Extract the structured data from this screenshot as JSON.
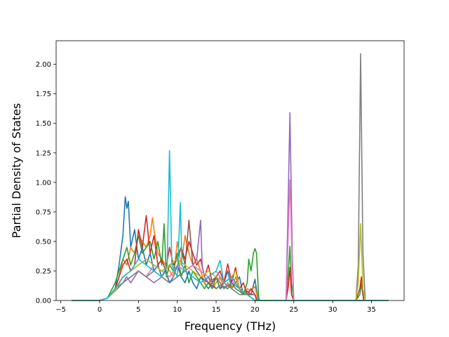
{
  "chart_data": {
    "type": "line",
    "xlabel": "Frequency (THz)",
    "ylabel": "Partial Density of States",
    "xlim": [
      -5.6,
      39.2
    ],
    "ylim": [
      0,
      2.2
    ],
    "xticks": [
      -5,
      0,
      5,
      10,
      15,
      20,
      25,
      30,
      35
    ],
    "yticks": [
      0.0,
      0.25,
      0.5,
      0.75,
      1.0,
      1.25,
      1.5,
      1.75,
      2.0
    ],
    "ytick_format": 2,
    "grid": false,
    "legend": "none",
    "series": [
      {
        "color": "#1f77b4",
        "x": [
          -3.6,
          0,
          1,
          1.5,
          2,
          2.5,
          3,
          3.3,
          3.5,
          3.7,
          4,
          4.5,
          5,
          5.5,
          6,
          6.5,
          7,
          7.5,
          8,
          8.5,
          9,
          9.5,
          10,
          10.5,
          11,
          11.5,
          12,
          12.5,
          13,
          13.5,
          14,
          14.5,
          15,
          15.5,
          16,
          16.5,
          17,
          17.5,
          18,
          18.5,
          19,
          19.5,
          20,
          20.3,
          20.6,
          24,
          37.2
        ],
        "y": [
          0,
          0,
          0.02,
          0.05,
          0.1,
          0.3,
          0.55,
          0.88,
          0.78,
          0.84,
          0.45,
          0.6,
          0.35,
          0.45,
          0.3,
          0.4,
          0.25,
          0.3,
          0.2,
          0.25,
          0.15,
          0.2,
          0.3,
          0.2,
          0.15,
          0.25,
          0.15,
          0.1,
          0.2,
          0.15,
          0.1,
          0.15,
          0.2,
          0.1,
          0.15,
          0.25,
          0.1,
          0.15,
          0.2,
          0.05,
          0.08,
          0.05,
          0.18,
          0.05,
          0,
          0,
          0
        ]
      },
      {
        "color": "#ff7f0e",
        "x": [
          -3.6,
          0,
          1,
          2,
          2.5,
          3,
          3.5,
          4,
          4.5,
          5,
          5.5,
          6,
          6.5,
          6.8,
          7,
          7.5,
          8,
          8.5,
          9,
          9.5,
          10,
          10.5,
          11,
          11.5,
          12,
          12.5,
          13,
          13.5,
          14,
          14.5,
          15,
          15.5,
          16,
          16.5,
          17,
          17.5,
          18,
          18.5,
          19,
          19.5,
          20,
          20.4,
          37.2
        ],
        "y": [
          0,
          0,
          0.02,
          0.1,
          0.2,
          0.35,
          0.3,
          0.45,
          0.4,
          0.55,
          0.5,
          0.45,
          0.55,
          0.7,
          0.6,
          0.4,
          0.35,
          0.3,
          0.25,
          0.2,
          0.5,
          0.3,
          0.55,
          0.4,
          0.3,
          0.35,
          0.25,
          0.15,
          0.2,
          0.1,
          0.15,
          0.2,
          0.1,
          0.15,
          0.1,
          0.2,
          0.1,
          0.05,
          0.1,
          0.08,
          0.12,
          0,
          0
        ]
      },
      {
        "color": "#2ca02c",
        "x": [
          -3.6,
          0,
          1,
          2,
          2.5,
          3,
          3.5,
          4,
          4.5,
          5,
          5.5,
          6,
          6.5,
          7,
          7.5,
          8,
          8.3,
          8.6,
          9,
          9.5,
          10,
          10.5,
          11,
          11.5,
          12,
          12.5,
          13,
          13.5,
          14,
          14.5,
          15,
          15.5,
          16,
          16.5,
          17,
          17.5,
          18,
          18.5,
          19,
          19.2,
          19.5,
          19.8,
          20,
          20.2,
          20.5,
          24,
          24.3,
          24.5,
          24.7,
          25,
          33,
          33.5,
          33.7,
          34,
          37.2
        ],
        "y": [
          0,
          0,
          0.02,
          0.15,
          0.25,
          0.35,
          0.45,
          0.3,
          0.4,
          0.55,
          0.4,
          0.45,
          0.5,
          0.35,
          0.5,
          0.3,
          0.65,
          0.2,
          0.3,
          0.25,
          0.4,
          0.2,
          0.3,
          0.15,
          0.25,
          0.2,
          0.15,
          0.1,
          0.15,
          0.1,
          0.2,
          0.1,
          0.12,
          0.1,
          0.15,
          0.1,
          0.08,
          0.05,
          0.15,
          0.35,
          0.25,
          0.4,
          0.44,
          0.4,
          0,
          0,
          0.25,
          0.46,
          0.15,
          0,
          0,
          0.05,
          0.14,
          0,
          0
        ]
      },
      {
        "color": "#d62728",
        "x": [
          -3.6,
          0,
          1,
          2,
          2.5,
          3,
          3.5,
          4,
          4.5,
          5,
          5.5,
          6,
          6.5,
          7,
          7.5,
          8,
          8.5,
          9,
          9.5,
          10,
          10.5,
          11,
          11.5,
          12,
          12.5,
          13,
          13.5,
          14,
          14.5,
          15,
          15.5,
          16,
          16.5,
          17,
          17.5,
          18,
          18.5,
          19,
          19.5,
          20,
          20.3,
          24,
          24.3,
          24.5,
          24.7,
          25,
          33,
          33.5,
          33.7,
          34,
          37.2
        ],
        "y": [
          0,
          0,
          0.02,
          0.1,
          0.2,
          0.3,
          0.35,
          0.25,
          0.3,
          0.6,
          0.45,
          0.72,
          0.4,
          0.55,
          0.3,
          0.35,
          0.25,
          0.45,
          0.3,
          0.35,
          0.45,
          0.35,
          0.5,
          0.4,
          0.3,
          0.35,
          0.2,
          0.3,
          0.15,
          0.2,
          0.25,
          0.15,
          0.31,
          0.15,
          0.28,
          0.1,
          0.15,
          0.05,
          0.1,
          0.05,
          0,
          0,
          0.12,
          0.28,
          0.05,
          0,
          0,
          0.1,
          0.2,
          0,
          0
        ]
      },
      {
        "color": "#9467bd",
        "x": [
          -3.6,
          0,
          1,
          2,
          3,
          3.5,
          4,
          5,
          6,
          7,
          8,
          9,
          10,
          11,
          12,
          12.5,
          13,
          13.2,
          13.5,
          14,
          15,
          16,
          17,
          18,
          19,
          20,
          20.3,
          24,
          24.2,
          24.5,
          24.8,
          25,
          37.2
        ],
        "y": [
          0,
          0,
          0.02,
          0.1,
          0.15,
          0.2,
          0.15,
          0.25,
          0.2,
          0.15,
          0.2,
          0.15,
          0.2,
          0.25,
          0.3,
          0.35,
          0.68,
          0.3,
          0.2,
          0.15,
          0.2,
          0.1,
          0.15,
          0.1,
          0.05,
          0.05,
          0,
          0,
          0.6,
          1.59,
          0.4,
          0,
          0
        ]
      },
      {
        "color": "#8c564b",
        "x": [
          -3.6,
          0,
          1,
          2,
          3,
          4,
          5,
          6,
          7,
          8,
          9,
          10,
          10.5,
          11,
          11.5,
          12,
          13,
          14,
          15,
          16,
          17,
          18,
          19,
          20,
          20.2,
          37.2
        ],
        "y": [
          0,
          0,
          0.02,
          0.1,
          0.2,
          0.25,
          0.3,
          0.35,
          0.3,
          0.25,
          0.3,
          0.35,
          0.45,
          0.3,
          0.68,
          0.3,
          0.2,
          0.15,
          0.1,
          0.15,
          0.2,
          0.1,
          0.05,
          0.05,
          0,
          0
        ]
      },
      {
        "color": "#e377c2",
        "x": [
          -3.6,
          0,
          1,
          2,
          3,
          4,
          5,
          6,
          7,
          8,
          9,
          10,
          11,
          12,
          13,
          14,
          15,
          16,
          17,
          18,
          19,
          20,
          24,
          24.2,
          24.5,
          24.8,
          25,
          37.2
        ],
        "y": [
          0,
          0,
          0.02,
          0.08,
          0.15,
          0.2,
          0.25,
          0.2,
          0.3,
          0.25,
          0.2,
          0.3,
          0.25,
          0.3,
          0.25,
          0.2,
          0.25,
          0.15,
          0.2,
          0.1,
          0.05,
          0,
          0,
          0.4,
          1.02,
          0.3,
          0,
          0
        ]
      },
      {
        "color": "#7f7f7f",
        "x": [
          -3.6,
          0,
          1,
          2,
          3,
          4,
          5,
          6,
          7,
          8,
          9,
          10,
          11,
          12,
          13,
          14,
          15,
          16,
          17,
          18,
          19,
          20,
          33,
          33.3,
          33.6,
          33.9,
          34.2,
          37.2
        ],
        "y": [
          0,
          0,
          0.02,
          0.08,
          0.15,
          0.2,
          0.25,
          0.2,
          0.25,
          0.2,
          0.15,
          0.2,
          0.25,
          0.2,
          0.15,
          0.2,
          0.1,
          0.15,
          0.1,
          0.05,
          0.05,
          0,
          0,
          0.3,
          2.09,
          0.4,
          0,
          0
        ]
      },
      {
        "color": "#bcbd22",
        "x": [
          -3.6,
          0,
          1,
          2,
          3,
          4,
          5,
          6,
          7,
          8,
          9,
          10,
          11,
          12,
          13,
          14,
          15,
          16,
          17,
          17.5,
          18,
          19,
          20,
          33,
          33.3,
          33.6,
          33.9,
          34.2,
          37.2
        ],
        "y": [
          0,
          0,
          0.02,
          0.08,
          0.2,
          0.25,
          0.3,
          0.35,
          0.3,
          0.25,
          0.3,
          0.35,
          0.3,
          0.25,
          0.2,
          0.25,
          0.2,
          0.15,
          0.2,
          0.25,
          0.1,
          0.05,
          0,
          0,
          0.15,
          0.65,
          0.1,
          0,
          0
        ]
      },
      {
        "color": "#17becf",
        "x": [
          -3.6,
          0,
          1,
          2,
          3,
          4,
          5,
          6,
          7,
          8,
          8.7,
          9,
          9.3,
          10,
          10.4,
          10.6,
          11,
          12,
          13,
          14,
          15,
          15.5,
          16,
          17,
          18,
          19,
          20,
          37.2
        ],
        "y": [
          0,
          0,
          0.02,
          0.1,
          0.2,
          0.25,
          0.35,
          0.3,
          0.25,
          0.2,
          0.3,
          1.27,
          0.3,
          0.2,
          0.83,
          0.3,
          0.25,
          0.2,
          0.15,
          0.2,
          0.25,
          0.34,
          0.15,
          0.2,
          0.1,
          0.05,
          0,
          0
        ]
      }
    ]
  }
}
